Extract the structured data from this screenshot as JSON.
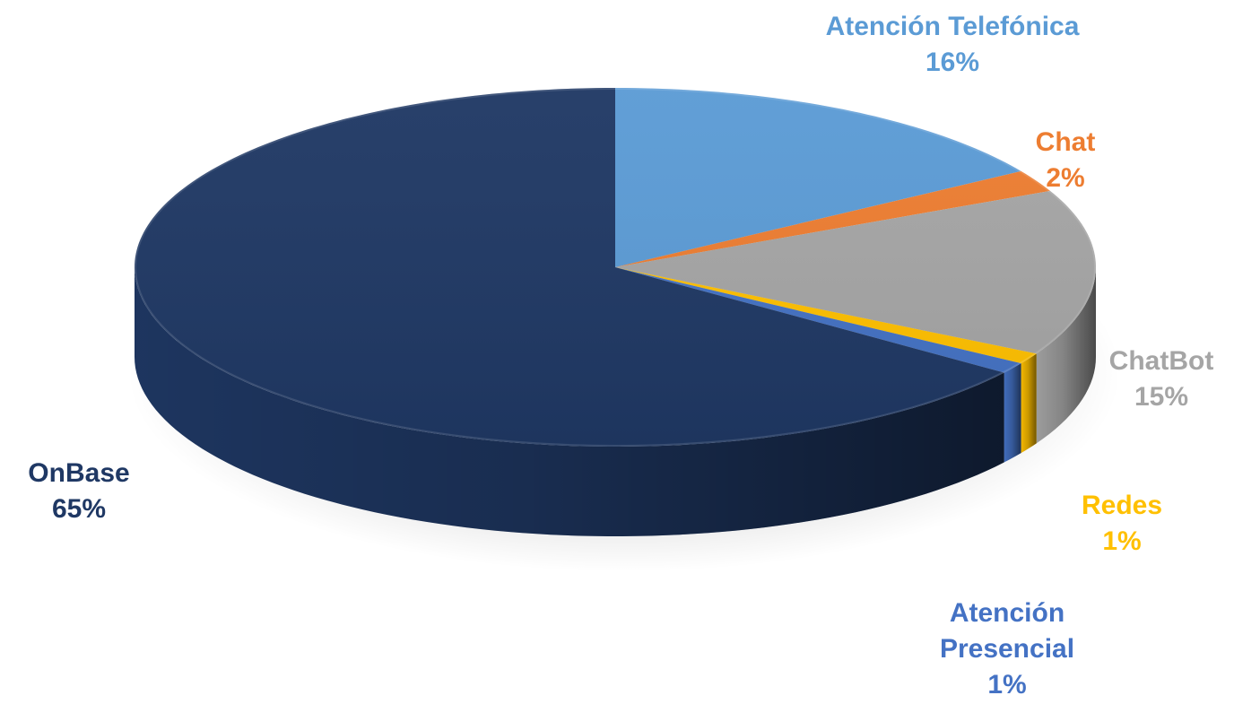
{
  "chart_data": {
    "type": "pie",
    "style": "3d",
    "title": "",
    "slices": [
      {
        "name": "Atención Telefónica",
        "label_lines": [
          "Atención Telefónica"
        ],
        "value": 16,
        "value_label": "16%",
        "color": "#5B9BD5",
        "label_color": "#5B9BD5"
      },
      {
        "name": "Chat",
        "label_lines": [
          "Chat"
        ],
        "value": 2,
        "value_label": "2%",
        "color": "#ED7D31",
        "label_color": "#ED7D31"
      },
      {
        "name": "ChatBot",
        "label_lines": [
          "ChatBot"
        ],
        "value": 15,
        "value_label": "15%",
        "color": "#A5A5A5",
        "label_color": "#A5A5A5"
      },
      {
        "name": "Redes",
        "label_lines": [
          "Redes"
        ],
        "value": 1,
        "value_label": "1%",
        "color": "#FFC000",
        "label_color": "#FFC000"
      },
      {
        "name": "Atención Presencial",
        "label_lines": [
          "Atención",
          "Presencial"
        ],
        "value": 1,
        "value_label": "1%",
        "color": "#4472C4",
        "label_color": "#4472C4"
      },
      {
        "name": "OnBase",
        "label_lines": [
          "OnBase"
        ],
        "value": 65,
        "value_label": "65%",
        "color": "#1F3864",
        "label_color": "#1F3864"
      }
    ],
    "legend": "none"
  }
}
